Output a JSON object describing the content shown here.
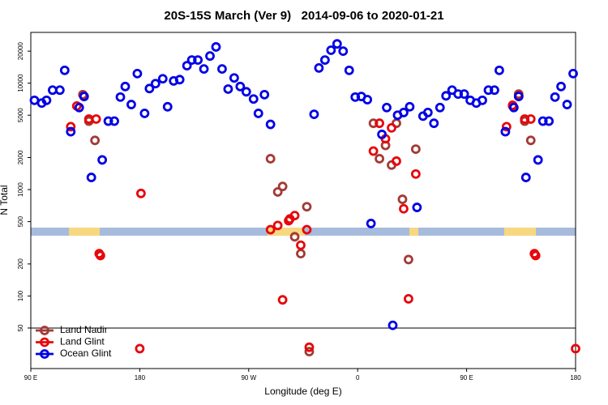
{
  "chart_data": {
    "type": "scatter",
    "title": "20S-15S March (Ver 9)   2014-09-06 to 2020-01-21",
    "xlabel": "Longitude (deg E)",
    "ylabel": "N Total",
    "xlim": [
      90,
      540
    ],
    "xticks": [
      {
        "value": 90,
        "label": "90 E"
      },
      180,
      {
        "value": 270,
        "label": "90 W"
      },
      {
        "value": 360,
        "label": "0"
      },
      {
        "value": 450,
        "label": "90 E"
      },
      {
        "value": 540,
        "label": "180"
      }
    ],
    "ylim": [
      20.8,
      30000
    ],
    "log_y": true,
    "yticks": [
      50,
      100,
      200,
      500,
      1000,
      2000,
      5000,
      10000,
      20000
    ],
    "legend": "lower left",
    "series": [
      {
        "name": "Land Nadir",
        "color": "#a33a36",
        "x": [
          133,
          138,
          143,
          288,
          294,
          298,
          308,
          313,
          318,
          320,
          373,
          378,
          383,
          388,
          392,
          397,
          402,
          408,
          488,
          493,
          498,
          503
        ],
        "values": [
          7800,
          4400,
          2900,
          1950,
          950,
          1070,
          360,
          250,
          690,
          30,
          4200,
          1950,
          2600,
          1700,
          4200,
          810,
          220,
          2400,
          6100,
          7900,
          4400,
          2900
        ]
      },
      {
        "name": "Land Glint",
        "color": "#e8060b",
        "x": [
          123,
          128,
          134,
          138,
          144,
          146.5,
          147.5,
          180,
          181,
          288,
          294,
          298,
          303,
          304,
          308,
          313,
          318,
          320,
          373,
          378,
          383,
          388,
          392,
          398,
          402,
          408,
          483,
          488,
          493,
          498,
          503,
          506,
          507,
          540
        ],
        "values": [
          3900,
          6100,
          7500,
          4600,
          4600,
          250,
          240,
          32,
          920,
          420,
          460,
          92,
          510,
          530,
          570,
          300,
          420,
          33,
          2300,
          4200,
          3000,
          3800,
          1850,
          660,
          94,
          1400,
          3900,
          6200,
          7600,
          4600,
          4600,
          250,
          240,
          32
        ]
      },
      {
        "name": "Ocean Glint",
        "color": "#0000e6",
        "x": [
          93,
          99,
          103,
          108,
          114,
          118,
          123,
          130,
          134,
          140,
          149,
          154,
          159,
          164,
          168,
          173,
          178,
          184,
          188,
          193,
          199,
          203,
          208,
          213,
          219,
          223,
          228,
          233,
          238,
          243,
          248,
          253,
          258,
          263,
          268,
          274,
          278,
          283,
          288,
          324,
          328,
          333,
          338,
          343,
          348,
          353,
          358,
          363,
          368,
          371,
          380,
          384,
          389,
          393,
          398,
          403,
          409,
          414,
          418,
          423,
          428,
          433,
          438,
          443,
          448,
          453,
          458,
          463,
          468,
          473,
          477,
          482,
          489,
          493,
          499,
          509,
          513,
          518,
          523,
          528,
          533,
          538
        ],
        "values": [
          6900,
          6500,
          6900,
          8600,
          8600,
          13200,
          3500,
          5900,
          7500,
          1300,
          1900,
          4400,
          4400,
          7400,
          9300,
          6300,
          12300,
          5200,
          8900,
          9900,
          11000,
          6000,
          10500,
          10800,
          14600,
          16500,
          16500,
          13600,
          18000,
          21900,
          13600,
          8800,
          11200,
          9300,
          8300,
          7100,
          5200,
          7800,
          4100,
          5100,
          13900,
          16500,
          20400,
          23400,
          20000,
          13200,
          7400,
          7500,
          7000,
          480,
          3300,
          5900,
          53,
          5000,
          5300,
          6000,
          680,
          4900,
          5300,
          4200,
          5900,
          7600,
          8600,
          7900,
          7900,
          6900,
          6500,
          6900,
          8600,
          8600,
          13200,
          3500,
          5900,
          7500,
          1300,
          1900,
          4400,
          4400,
          7400,
          9300,
          6300,
          12300
        ]
      }
    ]
  }
}
